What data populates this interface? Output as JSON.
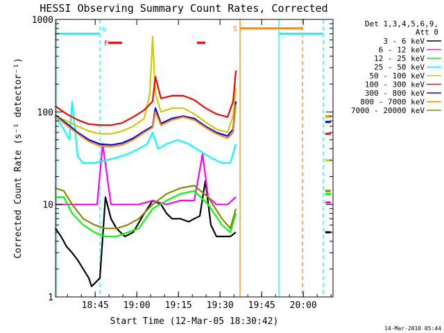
{
  "chart_data": {
    "type": "line",
    "title": "HESSI Observing Summary Count Rates, Corrected",
    "xlabel": "Start Time (12-Mar-05 18:30:42)",
    "ylabel": "Corrected Count Rate (s⁻¹ detector⁻¹)",
    "xlim": [
      0,
      100
    ],
    "ylim": [
      1,
      1000
    ],
    "yscale": "log",
    "x_units": "minutes after 18:30:42",
    "x_ticks": [
      {
        "label": "18:45",
        "value": 14.3
      },
      {
        "label": "19:00",
        "value": 29.3
      },
      {
        "label": "19:15",
        "value": 44.3
      },
      {
        "label": "19:30",
        "value": 59.3
      },
      {
        "label": "19:45",
        "value": 74.3
      },
      {
        "label": "20:00",
        "value": 89.3
      }
    ],
    "y_ticks": [
      {
        "label": "1",
        "value": 1
      },
      {
        "label": "10",
        "value": 10
      },
      {
        "label": "100",
        "value": 100
      },
      {
        "label": "1000",
        "value": 1000
      }
    ],
    "legend": {
      "placement": "right",
      "header": [
        "Det 1,3,4,5,6,9,",
        "Att 0"
      ],
      "entries": [
        {
          "label": "3 - 6 keV",
          "color": "#000000"
        },
        {
          "label": "6 - 12 keV",
          "color": "#ff00ff"
        },
        {
          "label": "12 - 25 keV",
          "color": "#00ff00"
        },
        {
          "label": "25 - 50 keV",
          "color": "#00ffff"
        },
        {
          "label": "50 - 100 keV",
          "color": "#cccc00"
        },
        {
          "label": "100 - 300 keV",
          "color": "#ff0000"
        },
        {
          "label": "300 - 800 keV",
          "color": "#0000ff"
        },
        {
          "label": "800 - 7000 keV",
          "color": "#ff8800"
        },
        {
          "label": "7000 - 20000 keV",
          "color": "#888800"
        }
      ]
    },
    "series": [
      {
        "name": "3 - 6 keV",
        "color": "#000000",
        "x": [
          0,
          2,
          4,
          6,
          8,
          10,
          12,
          13,
          16,
          18,
          20,
          22,
          25,
          28,
          32,
          35,
          38,
          40,
          42,
          45,
          48,
          50,
          52,
          54,
          56,
          58,
          60,
          63,
          65
        ],
        "y": [
          5.5,
          4.5,
          3.5,
          3,
          2.5,
          2,
          1.6,
          1.3,
          1.6,
          12,
          7,
          5.5,
          4.5,
          5,
          8,
          11,
          10,
          8,
          7,
          7,
          6.5,
          7,
          7.5,
          18,
          6,
          4.5,
          4.5,
          4.5,
          5
        ]
      },
      {
        "name": "6 - 12 keV",
        "color": "#ff00ff",
        "x": [
          0,
          5,
          10,
          15,
          17,
          20,
          25,
          30,
          35,
          40,
          45,
          50,
          53,
          55,
          58,
          62,
          65
        ],
        "y": [
          10,
          10,
          10,
          10,
          45,
          10,
          10,
          10,
          11,
          10,
          11,
          11,
          35,
          12,
          10,
          10,
          12
        ]
      },
      {
        "name": "12 - 25 keV",
        "color": "#00ff00",
        "x": [
          0,
          3,
          6,
          10,
          14,
          18,
          22,
          26,
          30,
          35,
          40,
          45,
          50,
          55,
          60,
          63,
          65
        ],
        "y": [
          12,
          12,
          8,
          6,
          5,
          4.5,
          4.5,
          5,
          5.5,
          9,
          11,
          13,
          14,
          10,
          6,
          5,
          8
        ]
      },
      {
        "name": "25 - 50 keV",
        "color": "#00ffff",
        "x": [
          0,
          3,
          5,
          6,
          8,
          10,
          14,
          18,
          22,
          26,
          30,
          33,
          35,
          37,
          40,
          44,
          48,
          52,
          56,
          60,
          63,
          65
        ],
        "y": [
          90,
          65,
          50,
          130,
          33,
          28,
          28,
          30,
          32,
          35,
          40,
          45,
          60,
          40,
          45,
          50,
          45,
          38,
          32,
          28,
          28,
          45
        ]
      },
      {
        "name": "50 - 100 keV",
        "color": "#cccc00",
        "x": [
          0,
          4,
          8,
          12,
          16,
          20,
          24,
          28,
          32,
          34,
          35,
          36,
          38,
          42,
          46,
          50,
          54,
          58,
          62,
          64,
          65
        ],
        "y": [
          90,
          80,
          70,
          62,
          58,
          58,
          62,
          70,
          85,
          160,
          650,
          160,
          100,
          110,
          110,
          95,
          78,
          65,
          60,
          90,
          180
        ]
      },
      {
        "name": "100 - 300 keV",
        "color": "#ff0000",
        "x": [
          0,
          4,
          8,
          12,
          16,
          20,
          24,
          28,
          32,
          35,
          36,
          38,
          42,
          46,
          50,
          54,
          58,
          62,
          64,
          65
        ],
        "y": [
          115,
          95,
          82,
          74,
          72,
          72,
          76,
          88,
          105,
          130,
          240,
          140,
          150,
          150,
          135,
          110,
          95,
          88,
          130,
          280
        ]
      },
      {
        "name": "300 - 800 keV",
        "color": "#0000ff",
        "x": [
          0,
          4,
          8,
          12,
          16,
          20,
          24,
          28,
          32,
          35,
          36,
          38,
          42,
          46,
          50,
          54,
          58,
          62,
          64,
          65
        ],
        "y": [
          92,
          75,
          60,
          50,
          45,
          44,
          46,
          52,
          62,
          70,
          110,
          75,
          85,
          90,
          85,
          70,
          60,
          55,
          65,
          130
        ]
      },
      {
        "name": "800 - 7000 keV",
        "color": "#ff8800",
        "x": [
          0,
          4,
          8,
          12,
          16,
          20,
          24,
          28,
          32,
          35,
          36,
          38,
          42,
          46,
          50,
          54,
          58,
          62,
          64,
          65
        ],
        "y": [
          90,
          72,
          58,
          48,
          43,
          42,
          44,
          50,
          60,
          68,
          100,
          72,
          82,
          88,
          82,
          68,
          58,
          52,
          60,
          120
        ]
      },
      {
        "name": "7000 - 20000 keV",
        "color": "#888800",
        "x": [
          0,
          3,
          6,
          10,
          14,
          18,
          22,
          26,
          30,
          35,
          40,
          45,
          50,
          55,
          60,
          63,
          65
        ],
        "y": [
          15,
          14,
          10,
          7,
          6,
          5.5,
          5.5,
          6,
          7,
          10,
          13,
          15,
          16,
          12,
          7,
          5.5,
          9
        ]
      }
    ],
    "right_segments": [
      {
        "color": "#ff8800",
        "y": 90
      },
      {
        "color": "#cccc00",
        "y": 88
      },
      {
        "color": "#0000ff",
        "y": 78
      },
      {
        "color": "#ff0000",
        "y": 58
      },
      {
        "color": "#cccc00",
        "y": 30
      },
      {
        "color": "#888800",
        "y": 14
      },
      {
        "color": "#00ff00",
        "y": 13
      },
      {
        "color": "#ff00ff",
        "y": 10.5
      },
      {
        "color": "#000000",
        "y": 5
      }
    ],
    "markers": [
      {
        "label": "N",
        "color": "#00ffff",
        "x0": 0,
        "x1": 16,
        "y": 700
      },
      {
        "label": "F",
        "color": "#ff0000",
        "x0": 19,
        "x1": 24,
        "y": 560
      },
      {
        "label": "",
        "color": "#ff0000",
        "x0": 51,
        "x1": 54,
        "y": 560
      },
      {
        "label": "S",
        "color": "#ff8800",
        "x0": 66.5,
        "x1": 89,
        "y": 800
      },
      {
        "label": "",
        "color": "#00ffff",
        "x0": 80.5,
        "x1": 96.5,
        "y": 700
      }
    ],
    "vlines": [
      {
        "x": 16,
        "color": "#00ffff",
        "style": "dashed"
      },
      {
        "x": 66.5,
        "color": "#ff8800",
        "style": "solid"
      },
      {
        "x": 80.5,
        "color": "#00ffff",
        "style": "solid"
      },
      {
        "x": 89,
        "color": "#ff8800",
        "style": "dashed"
      },
      {
        "x": 96.5,
        "color": "#00ffff",
        "style": "dashed"
      },
      {
        "x": 0.4,
        "color": "#00ffff",
        "style": "solid"
      }
    ],
    "timestamp": "14-Mar-2010 05:44"
  }
}
